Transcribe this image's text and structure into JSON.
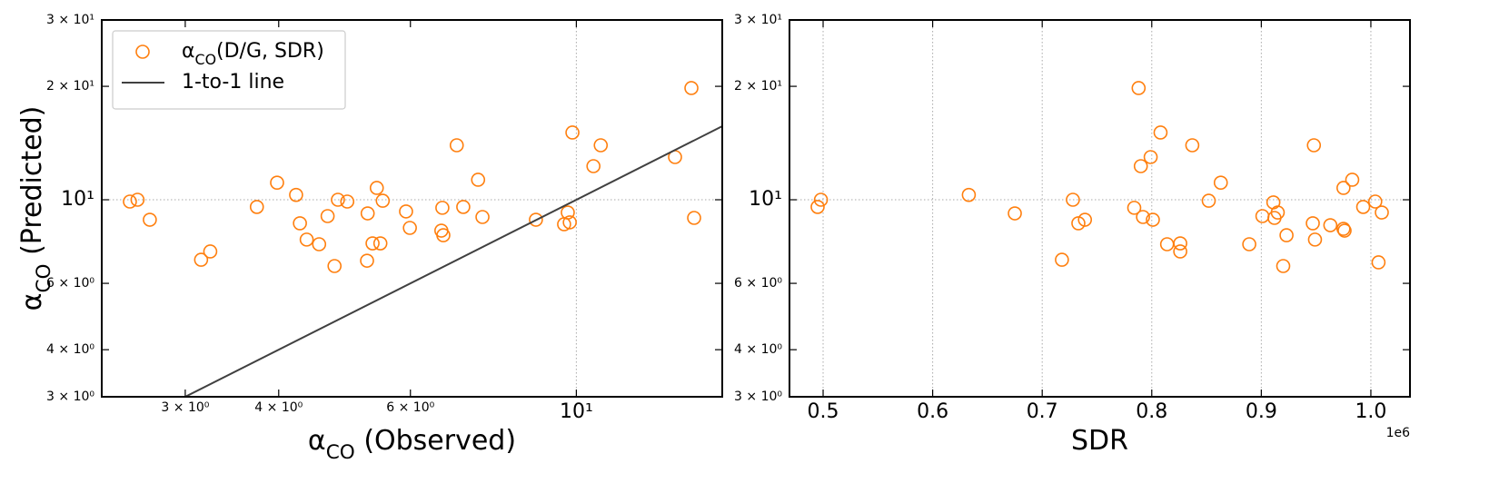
{
  "chart_data": [
    {
      "type": "scatter",
      "xscale": "log",
      "yscale": "log",
      "x_label": "α_{CO} (Observed)",
      "y_label": "α_{CO} (Predicted)",
      "xlim": [
        2.32,
        15.67
      ],
      "ylim": [
        3,
        30
      ],
      "xticks": [
        {
          "value": 3,
          "label": "3 × 10⁰"
        },
        {
          "value": 4,
          "label": "4 × 10⁰"
        },
        {
          "value": 6,
          "label": "6 × 10⁰"
        },
        {
          "value": 10,
          "label": "10¹",
          "major": true
        }
      ],
      "yticks": [
        {
          "value": 3,
          "label": "3 × 10⁰"
        },
        {
          "value": 4,
          "label": "4 × 10⁰"
        },
        {
          "value": 6,
          "label": "6 × 10⁰"
        },
        {
          "value": 10,
          "label": "10¹",
          "major": true
        },
        {
          "value": 20,
          "label": "2 × 10¹"
        },
        {
          "value": 30,
          "label": "3 × 10¹"
        }
      ],
      "grid": true,
      "legend": "upper left",
      "series": [
        {
          "name": "α_{CO}(D/G, SDR)",
          "color": "#ff7f0e",
          "type": "scatter",
          "x": [
            2.53,
            2.59,
            2.69,
            3.15,
            3.24,
            3.74,
            3.98,
            4.22,
            4.27,
            4.36,
            4.53,
            4.65,
            4.75,
            4.8,
            4.94,
            5.25,
            5.26,
            5.34,
            5.41,
            5.47,
            5.51,
            5.92,
            5.99,
            6.6,
            6.62,
            6.64,
            6.92,
            7.06,
            7.39,
            7.49,
            8.83,
            9.63,
            9.74,
            9.8,
            9.88,
            10.54,
            10.78,
            13.55,
            14.25,
            14.37
          ],
          "values": [
            9.89,
            10.0,
            8.85,
            6.93,
            7.29,
            9.57,
            11.1,
            10.3,
            8.66,
            7.84,
            7.62,
            9.05,
            6.67,
            10.0,
            9.89,
            6.89,
            9.2,
            7.66,
            10.75,
            7.66,
            9.94,
            9.31,
            8.42,
            8.28,
            9.52,
            8.05,
            13.95,
            9.57,
            11.3,
            9.0,
            8.85,
            8.61,
            9.25,
            8.71,
            15.08,
            12.28,
            13.95,
            12.98,
            19.79,
            8.95
          ]
        },
        {
          "name": "1-to-1 line",
          "color": "#404040",
          "type": "line",
          "x": [
            2.32,
            15.67
          ],
          "values": [
            2.32,
            15.67
          ]
        }
      ]
    },
    {
      "type": "scatter",
      "xscale": "linear",
      "yscale": "log",
      "x_label": "SDR",
      "x_offset_label": "1e6",
      "xlim": [
        0.4693,
        1.0357
      ],
      "ylim": [
        3,
        30
      ],
      "xticks": [
        0.5,
        0.6,
        0.7,
        0.8,
        0.9,
        {
          "value": 1,
          "label": "1.0"
        }
      ],
      "yticks": [
        {
          "value": 3,
          "label": "3 × 10⁰"
        },
        {
          "value": 4,
          "label": "4 × 10⁰"
        },
        {
          "value": 6,
          "label": "6 × 10⁰"
        },
        {
          "value": 10,
          "label": "10¹",
          "major": true
        },
        {
          "value": 20,
          "label": "2 × 10¹"
        },
        {
          "value": 30,
          "label": "3 × 10¹"
        }
      ],
      "grid": true,
      "series": [
        {
          "color": "#ff7f0e",
          "type": "scatter",
          "x": [
            0.495,
            0.498,
            0.633,
            0.675,
            0.718,
            0.728,
            0.733,
            0.739,
            0.784,
            0.788,
            0.792,
            0.79,
            0.799,
            0.801,
            0.808,
            0.814,
            0.826,
            0.826,
            0.837,
            0.852,
            0.863,
            0.889,
            0.901,
            0.911,
            0.912,
            0.915,
            0.92,
            0.923,
            0.947,
            0.948,
            0.949,
            0.963,
            0.975,
            0.976,
            0.975,
            0.983,
            0.993,
            1.004,
            1.007,
            1.01
          ],
          "values": [
            9.57,
            10.0,
            10.3,
            9.2,
            6.93,
            10.0,
            8.66,
            8.85,
            9.52,
            19.79,
            9.0,
            12.28,
            12.98,
            8.85,
            15.08,
            7.62,
            7.29,
            7.66,
            13.95,
            9.94,
            11.1,
            7.62,
            9.05,
            9.84,
            8.95,
            9.25,
            6.67,
            8.05,
            8.66,
            13.95,
            7.84,
            8.56,
            8.37,
            8.28,
            10.75,
            11.3,
            9.57,
            9.89,
            6.82,
            9.25
          ]
        }
      ]
    }
  ]
}
